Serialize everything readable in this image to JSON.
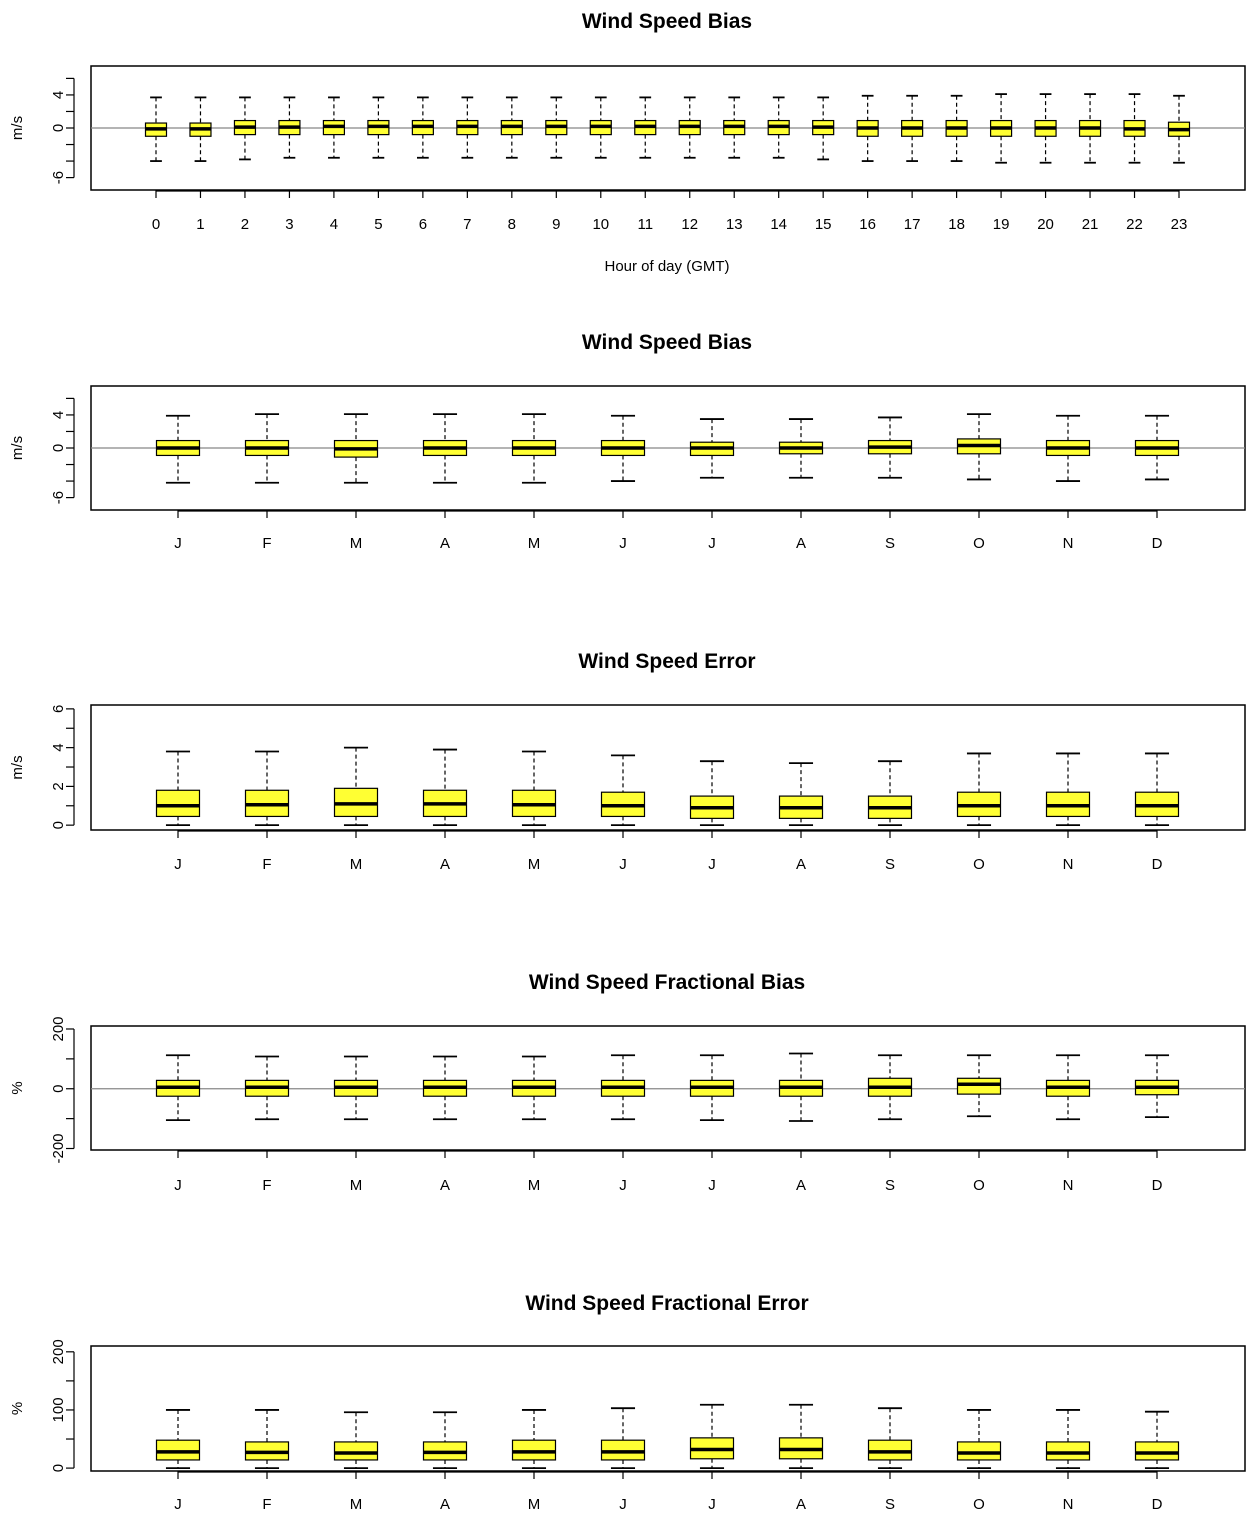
{
  "colors": {
    "box_fill": "#ffff33",
    "stroke": "#000000",
    "zero_line": "#888888",
    "background": "#ffffff"
  },
  "chart_data": [
    {
      "type": "boxplot",
      "title": "Wind Speed Bias",
      "xlabel": "Hour of day (GMT)",
      "ylabel": "m/s",
      "ylim": [
        -7.5,
        7.5
      ],
      "yticks": [
        -6,
        -4,
        -2,
        0,
        2,
        4,
        6
      ],
      "ytick_labels": [
        "-6",
        "",
        "",
        "0",
        "",
        "4",
        ""
      ],
      "zero_line": true,
      "grid": false,
      "categories": [
        "0",
        "1",
        "2",
        "3",
        "4",
        "5",
        "6",
        "7",
        "8",
        "9",
        "10",
        "11",
        "12",
        "13",
        "14",
        "15",
        "16",
        "17",
        "18",
        "19",
        "20",
        "21",
        "22",
        "23"
      ],
      "boxes": [
        {
          "low": -4.0,
          "q1": -1.0,
          "median": -0.1,
          "q3": 0.6,
          "high": 3.7
        },
        {
          "low": -4.0,
          "q1": -1.0,
          "median": -0.1,
          "q3": 0.6,
          "high": 3.7
        },
        {
          "low": -3.8,
          "q1": -0.8,
          "median": 0.1,
          "q3": 0.9,
          "high": 3.7
        },
        {
          "low": -3.6,
          "q1": -0.8,
          "median": 0.1,
          "q3": 0.9,
          "high": 3.7
        },
        {
          "low": -3.6,
          "q1": -0.8,
          "median": 0.2,
          "q3": 0.9,
          "high": 3.7
        },
        {
          "low": -3.6,
          "q1": -0.8,
          "median": 0.2,
          "q3": 0.9,
          "high": 3.7
        },
        {
          "low": -3.6,
          "q1": -0.8,
          "median": 0.2,
          "q3": 0.9,
          "high": 3.7
        },
        {
          "low": -3.6,
          "q1": -0.8,
          "median": 0.2,
          "q3": 0.9,
          "high": 3.7
        },
        {
          "low": -3.6,
          "q1": -0.8,
          "median": 0.2,
          "q3": 0.9,
          "high": 3.7
        },
        {
          "low": -3.6,
          "q1": -0.8,
          "median": 0.2,
          "q3": 0.9,
          "high": 3.7
        },
        {
          "low": -3.6,
          "q1": -0.8,
          "median": 0.2,
          "q3": 0.9,
          "high": 3.7
        },
        {
          "low": -3.6,
          "q1": -0.8,
          "median": 0.2,
          "q3": 0.9,
          "high": 3.7
        },
        {
          "low": -3.6,
          "q1": -0.8,
          "median": 0.2,
          "q3": 0.9,
          "high": 3.7
        },
        {
          "low": -3.6,
          "q1": -0.8,
          "median": 0.2,
          "q3": 0.9,
          "high": 3.7
        },
        {
          "low": -3.6,
          "q1": -0.8,
          "median": 0.2,
          "q3": 0.9,
          "high": 3.7
        },
        {
          "low": -3.8,
          "q1": -0.8,
          "median": 0.1,
          "q3": 0.9,
          "high": 3.7
        },
        {
          "low": -4.0,
          "q1": -1.0,
          "median": 0.0,
          "q3": 0.9,
          "high": 3.9
        },
        {
          "low": -4.0,
          "q1": -1.0,
          "median": 0.0,
          "q3": 0.9,
          "high": 3.9
        },
        {
          "low": -4.0,
          "q1": -1.0,
          "median": 0.0,
          "q3": 0.9,
          "high": 3.9
        },
        {
          "low": -4.2,
          "q1": -1.0,
          "median": 0.0,
          "q3": 0.9,
          "high": 4.1
        },
        {
          "low": -4.2,
          "q1": -1.0,
          "median": 0.0,
          "q3": 0.9,
          "high": 4.1
        },
        {
          "low": -4.2,
          "q1": -1.0,
          "median": 0.0,
          "q3": 0.9,
          "high": 4.1
        },
        {
          "low": -4.2,
          "q1": -1.0,
          "median": -0.1,
          "q3": 0.9,
          "high": 4.1
        },
        {
          "low": -4.2,
          "q1": -1.0,
          "median": -0.2,
          "q3": 0.7,
          "high": 3.9
        }
      ]
    },
    {
      "type": "boxplot",
      "title": "Wind Speed Bias",
      "xlabel": "",
      "ylabel": "m/s",
      "ylim": [
        -7.5,
        7.5
      ],
      "yticks": [
        -6,
        -4,
        -2,
        0,
        2,
        4,
        6
      ],
      "ytick_labels": [
        "-6",
        "",
        "",
        "0",
        "",
        "4",
        ""
      ],
      "zero_line": true,
      "grid": false,
      "categories": [
        "J",
        "F",
        "M",
        "A",
        "M",
        "J",
        "J",
        "A",
        "S",
        "O",
        "N",
        "D"
      ],
      "boxes": [
        {
          "low": -4.2,
          "q1": -0.9,
          "median": 0.0,
          "q3": 0.9,
          "high": 3.9
        },
        {
          "low": -4.2,
          "q1": -0.9,
          "median": 0.0,
          "q3": 0.9,
          "high": 4.1
        },
        {
          "low": -4.2,
          "q1": -1.1,
          "median": -0.1,
          "q3": 0.9,
          "high": 4.1
        },
        {
          "low": -4.2,
          "q1": -0.9,
          "median": 0.0,
          "q3": 0.9,
          "high": 4.1
        },
        {
          "low": -4.2,
          "q1": -0.9,
          "median": 0.0,
          "q3": 0.9,
          "high": 4.1
        },
        {
          "low": -4.0,
          "q1": -0.9,
          "median": 0.0,
          "q3": 0.9,
          "high": 3.9
        },
        {
          "low": -3.6,
          "q1": -0.9,
          "median": 0.0,
          "q3": 0.7,
          "high": 3.5
        },
        {
          "low": -3.6,
          "q1": -0.7,
          "median": 0.0,
          "q3": 0.7,
          "high": 3.5
        },
        {
          "low": -3.6,
          "q1": -0.7,
          "median": 0.1,
          "q3": 0.9,
          "high": 3.7
        },
        {
          "low": -3.8,
          "q1": -0.7,
          "median": 0.3,
          "q3": 1.1,
          "high": 4.1
        },
        {
          "low": -4.0,
          "q1": -0.9,
          "median": 0.0,
          "q3": 0.9,
          "high": 3.9
        },
        {
          "low": -3.8,
          "q1": -0.9,
          "median": 0.0,
          "q3": 0.9,
          "high": 3.9
        }
      ]
    },
    {
      "type": "boxplot",
      "title": "Wind Speed Error",
      "xlabel": "",
      "ylabel": "m/s",
      "ylim": [
        -0.25,
        6.2
      ],
      "yticks": [
        0,
        1,
        2,
        3,
        4,
        5,
        6
      ],
      "ytick_labels": [
        "0",
        "",
        "2",
        "",
        "4",
        "",
        "6"
      ],
      "zero_line": false,
      "grid": false,
      "categories": [
        "J",
        "F",
        "M",
        "A",
        "M",
        "J",
        "J",
        "A",
        "S",
        "O",
        "N",
        "D"
      ],
      "boxes": [
        {
          "low": 0.0,
          "q1": 0.45,
          "median": 1.0,
          "q3": 1.8,
          "high": 3.8
        },
        {
          "low": 0.0,
          "q1": 0.45,
          "median": 1.05,
          "q3": 1.8,
          "high": 3.8
        },
        {
          "low": 0.0,
          "q1": 0.45,
          "median": 1.1,
          "q3": 1.9,
          "high": 4.0
        },
        {
          "low": 0.0,
          "q1": 0.45,
          "median": 1.1,
          "q3": 1.8,
          "high": 3.9
        },
        {
          "low": 0.0,
          "q1": 0.45,
          "median": 1.05,
          "q3": 1.8,
          "high": 3.8
        },
        {
          "low": 0.0,
          "q1": 0.45,
          "median": 1.0,
          "q3": 1.7,
          "high": 3.6
        },
        {
          "low": 0.0,
          "q1": 0.35,
          "median": 0.9,
          "q3": 1.5,
          "high": 3.3
        },
        {
          "low": 0.0,
          "q1": 0.35,
          "median": 0.9,
          "q3": 1.5,
          "high": 3.2
        },
        {
          "low": 0.0,
          "q1": 0.35,
          "median": 0.9,
          "q3": 1.5,
          "high": 3.3
        },
        {
          "low": 0.0,
          "q1": 0.45,
          "median": 1.0,
          "q3": 1.7,
          "high": 3.7
        },
        {
          "low": 0.0,
          "q1": 0.45,
          "median": 1.0,
          "q3": 1.7,
          "high": 3.7
        },
        {
          "low": 0.0,
          "q1": 0.45,
          "median": 1.0,
          "q3": 1.7,
          "high": 3.7
        }
      ]
    },
    {
      "type": "boxplot",
      "title": "Wind Speed Fractional Bias",
      "xlabel": "",
      "ylabel": "%",
      "ylim": [
        -205,
        210
      ],
      "yticks": [
        -200,
        -100,
        0,
        100,
        200
      ],
      "ytick_labels": [
        "-200",
        "",
        "0",
        "",
        "200"
      ],
      "zero_line": true,
      "grid": false,
      "categories": [
        "J",
        "F",
        "M",
        "A",
        "M",
        "J",
        "J",
        "A",
        "S",
        "O",
        "N",
        "D"
      ],
      "boxes": [
        {
          "low": -105,
          "q1": -25,
          "median": 5,
          "q3": 28,
          "high": 112
        },
        {
          "low": -102,
          "q1": -25,
          "median": 5,
          "q3": 28,
          "high": 108
        },
        {
          "low": -102,
          "q1": -25,
          "median": 5,
          "q3": 28,
          "high": 108
        },
        {
          "low": -102,
          "q1": -25,
          "median": 5,
          "q3": 28,
          "high": 108
        },
        {
          "low": -102,
          "q1": -25,
          "median": 5,
          "q3": 28,
          "high": 108
        },
        {
          "low": -102,
          "q1": -25,
          "median": 5,
          "q3": 28,
          "high": 112
        },
        {
          "low": -105,
          "q1": -25,
          "median": 5,
          "q3": 28,
          "high": 112
        },
        {
          "low": -108,
          "q1": -25,
          "median": 5,
          "q3": 28,
          "high": 118
        },
        {
          "low": -102,
          "q1": -25,
          "median": 5,
          "q3": 35,
          "high": 112
        },
        {
          "low": -92,
          "q1": -18,
          "median": 15,
          "q3": 35,
          "high": 112
        },
        {
          "low": -102,
          "q1": -25,
          "median": 5,
          "q3": 28,
          "high": 112
        },
        {
          "low": -95,
          "q1": -20,
          "median": 5,
          "q3": 28,
          "high": 112
        }
      ]
    },
    {
      "type": "boxplot",
      "title": "Wind Speed Fractional Error",
      "xlabel": "",
      "ylabel": "%",
      "ylim": [
        -5,
        210
      ],
      "yticks": [
        0,
        50,
        100,
        150,
        200
      ],
      "ytick_labels": [
        "0",
        "",
        "100",
        "",
        "200"
      ],
      "zero_line": false,
      "grid": false,
      "categories": [
        "J",
        "F",
        "M",
        "A",
        "M",
        "J",
        "J",
        "A",
        "S",
        "O",
        "N",
        "D"
      ],
      "boxes": [
        {
          "low": 0,
          "q1": 14,
          "median": 28,
          "q3": 48,
          "high": 100
        },
        {
          "low": 0,
          "q1": 14,
          "median": 27,
          "q3": 45,
          "high": 100
        },
        {
          "low": 0,
          "q1": 14,
          "median": 26,
          "q3": 45,
          "high": 96
        },
        {
          "low": 0,
          "q1": 14,
          "median": 27,
          "q3": 45,
          "high": 96
        },
        {
          "low": 0,
          "q1": 14,
          "median": 28,
          "q3": 48,
          "high": 100
        },
        {
          "low": 0,
          "q1": 14,
          "median": 28,
          "q3": 48,
          "high": 103
        },
        {
          "low": 0,
          "q1": 16,
          "median": 32,
          "q3": 52,
          "high": 109
        },
        {
          "low": 0,
          "q1": 16,
          "median": 32,
          "q3": 52,
          "high": 109
        },
        {
          "low": 0,
          "q1": 14,
          "median": 28,
          "q3": 48,
          "high": 103
        },
        {
          "low": 0,
          "q1": 14,
          "median": 26,
          "q3": 45,
          "high": 100
        },
        {
          "low": 0,
          "q1": 14,
          "median": 26,
          "q3": 45,
          "high": 100
        },
        {
          "low": 0,
          "q1": 14,
          "median": 26,
          "q3": 45,
          "high": 97
        }
      ]
    }
  ]
}
